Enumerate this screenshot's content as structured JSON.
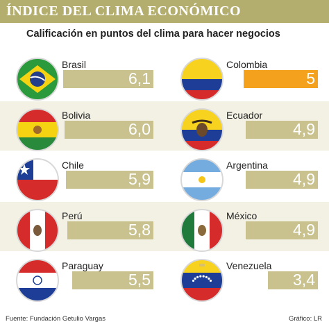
{
  "title": "ÍNDICE DEL CLIMA ECONÓMICO",
  "subtitle": "Calificación en puntos del clima para hacer negocios",
  "source": "Fuente: Fundación Getulio Vargas",
  "credit": "Gráfico: LR",
  "colors": {
    "title_bg": "#b4ae6e",
    "bar": "#c9c28f",
    "highlight": "#f4a21d",
    "band": "#f3f1e4"
  },
  "chart_data": {
    "type": "bar",
    "title": "ÍNDICE DEL CLIMA ECONÓMICO",
    "subtitle": "Calificación en puntos del clima para hacer negocios",
    "categories": [
      "Brasil",
      "Colombia",
      "Bolivia",
      "Ecuador",
      "Chile",
      "Argentina",
      "Perú",
      "México",
      "Paraguay",
      "Venezuela"
    ],
    "values": [
      6.1,
      5,
      6.0,
      4.9,
      5.9,
      4.9,
      5.8,
      4.9,
      5.5,
      3.4
    ],
    "value_labels": [
      "6,1",
      "5",
      "6,0",
      "4,9",
      "5,9",
      "4,9",
      "5,8",
      "4,9",
      "5,5",
      "3,4"
    ],
    "flags": [
      "brazil-flag",
      "colombia-flag",
      "bolivia-flag",
      "ecuador-flag",
      "chile-flag",
      "argentina-flag",
      "peru-flag",
      "mexico-flag",
      "paraguay-flag",
      "venezuela-flag"
    ],
    "highlight": "Colombia",
    "xlim": [
      0,
      6.1
    ]
  }
}
